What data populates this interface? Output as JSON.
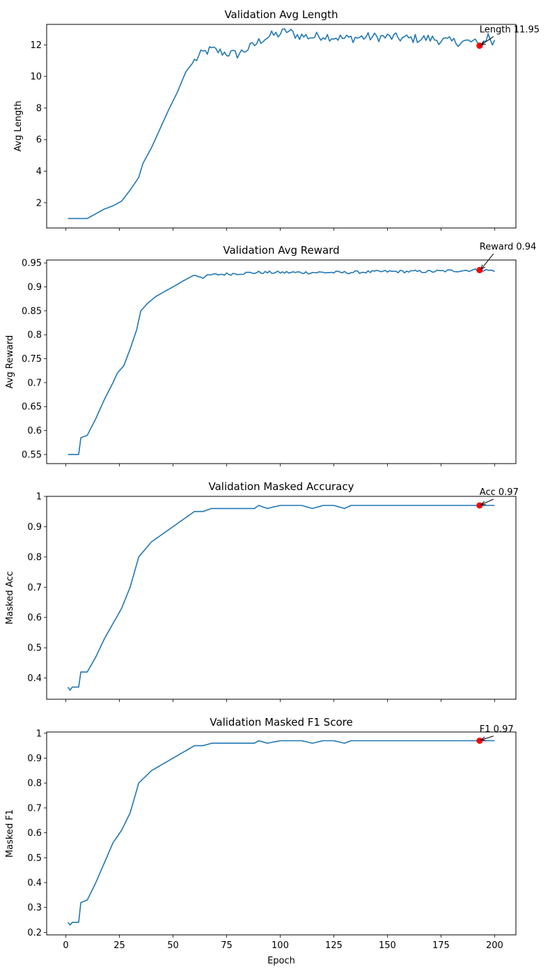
{
  "chart_data": [
    {
      "type": "line",
      "title": "Validation Avg Length",
      "xlabel": "",
      "ylabel": "Avg Length",
      "xlim": [
        -8.95,
        209.95
      ],
      "ylim": [
        0.4,
        13.3
      ],
      "xticks": [
        0,
        25,
        50,
        75,
        100,
        125,
        150,
        175,
        200
      ],
      "yticks": [
        2,
        4,
        6,
        8,
        10,
        12
      ],
      "show_xtick_labels": false,
      "series_color": "#1f77b4",
      "marker_color": "#ff0000",
      "knots": [
        [
          1,
          1.0
        ],
        [
          10,
          1.0
        ],
        [
          14,
          1.3
        ],
        [
          18,
          1.6
        ],
        [
          22,
          1.8
        ],
        [
          26,
          2.1
        ],
        [
          30,
          2.8
        ],
        [
          34,
          3.6
        ],
        [
          36,
          4.5
        ],
        [
          40,
          5.5
        ],
        [
          44,
          6.7
        ],
        [
          48,
          7.9
        ],
        [
          52,
          9.0
        ],
        [
          56,
          10.3
        ],
        [
          60,
          11.0
        ],
        [
          64,
          11.5
        ],
        [
          68,
          11.7
        ],
        [
          74,
          11.5
        ],
        [
          80,
          11.4
        ],
        [
          84,
          11.7
        ],
        [
          88,
          12.0
        ],
        [
          92,
          12.4
        ],
        [
          96,
          12.6
        ],
        [
          100,
          12.7
        ],
        [
          103,
          12.9
        ],
        [
          108,
          12.6
        ],
        [
          115,
          12.5
        ],
        [
          120,
          12.6
        ],
        [
          130,
          12.4
        ],
        [
          140,
          12.5
        ],
        [
          150,
          12.5
        ],
        [
          160,
          12.4
        ],
        [
          170,
          12.4
        ],
        [
          180,
          12.2
        ],
        [
          190,
          12.2
        ],
        [
          193,
          11.95
        ],
        [
          195,
          12.2
        ],
        [
          197,
          12.6
        ],
        [
          199,
          12.1
        ],
        [
          200,
          12.2
        ]
      ],
      "noise": 0.3,
      "noise_from": 60,
      "point": {
        "x": 193,
        "y": 11.95
      },
      "annotation": {
        "text": "Length 11.95",
        "x": 193,
        "y": 12.7
      }
    },
    {
      "type": "line",
      "title": "Validation Avg Reward",
      "xlabel": "",
      "ylabel": "Avg Reward",
      "xlim": [
        -8.95,
        209.95
      ],
      "ylim": [
        0.531,
        0.956
      ],
      "xticks": [
        0,
        25,
        50,
        75,
        100,
        125,
        150,
        175,
        200
      ],
      "yticks": [
        0.55,
        0.6,
        0.65,
        0.7,
        0.75,
        0.8,
        0.85,
        0.9,
        0.95
      ],
      "show_xtick_labels": false,
      "series_color": "#1f77b4",
      "marker_color": "#ff0000",
      "knots": [
        [
          1,
          0.55
        ],
        [
          6,
          0.55
        ],
        [
          7,
          0.585
        ],
        [
          10,
          0.59
        ],
        [
          14,
          0.625
        ],
        [
          18,
          0.665
        ],
        [
          22,
          0.7
        ],
        [
          24,
          0.72
        ],
        [
          27,
          0.735
        ],
        [
          30,
          0.77
        ],
        [
          33,
          0.81
        ],
        [
          35,
          0.85
        ],
        [
          38,
          0.865
        ],
        [
          42,
          0.88
        ],
        [
          46,
          0.89
        ],
        [
          50,
          0.9
        ],
        [
          55,
          0.913
        ],
        [
          60,
          0.925
        ],
        [
          64,
          0.92
        ],
        [
          68,
          0.925
        ],
        [
          80,
          0.928
        ],
        [
          90,
          0.93
        ],
        [
          110,
          0.93
        ],
        [
          130,
          0.93
        ],
        [
          150,
          0.932
        ],
        [
          170,
          0.932
        ],
        [
          190,
          0.935
        ],
        [
          193,
          0.935
        ],
        [
          200,
          0.934
        ]
      ],
      "noise": 0.003,
      "noise_from": 60,
      "point": {
        "x": 193,
        "y": 0.935
      },
      "annotation": {
        "text": "Reward 0.94",
        "x": 193,
        "y": 0.975
      }
    },
    {
      "type": "line",
      "title": "Validation Masked Accuracy",
      "xlabel": "",
      "ylabel": "Masked Acc",
      "xlim": [
        -8.95,
        209.95
      ],
      "ylim": [
        0.33,
        1.0
      ],
      "xticks": [
        0,
        25,
        50,
        75,
        100,
        125,
        150,
        175,
        200
      ],
      "yticks": [
        0.4,
        0.5,
        0.6,
        0.7,
        0.8,
        0.9,
        1.0
      ],
      "show_xtick_labels": false,
      "series_color": "#1f77b4",
      "marker_color": "#ff0000",
      "knots": [
        [
          1,
          0.37
        ],
        [
          2,
          0.36
        ],
        [
          3,
          0.37
        ],
        [
          6,
          0.37
        ],
        [
          7,
          0.42
        ],
        [
          10,
          0.42
        ],
        [
          14,
          0.47
        ],
        [
          18,
          0.53
        ],
        [
          22,
          0.58
        ],
        [
          26,
          0.63
        ],
        [
          30,
          0.7
        ],
        [
          34,
          0.8
        ],
        [
          40,
          0.85
        ],
        [
          44,
          0.87
        ],
        [
          48,
          0.89
        ],
        [
          52,
          0.91
        ],
        [
          56,
          0.93
        ],
        [
          60,
          0.95
        ],
        [
          64,
          0.95
        ],
        [
          68,
          0.96
        ],
        [
          80,
          0.96
        ],
        [
          88,
          0.96
        ],
        [
          90,
          0.97
        ],
        [
          94,
          0.96
        ],
        [
          100,
          0.97
        ],
        [
          110,
          0.97
        ],
        [
          115,
          0.96
        ],
        [
          120,
          0.97
        ],
        [
          125,
          0.97
        ],
        [
          130,
          0.96
        ],
        [
          133,
          0.97
        ],
        [
          150,
          0.97
        ],
        [
          170,
          0.97
        ],
        [
          193,
          0.97
        ],
        [
          200,
          0.97
        ]
      ],
      "noise": 0.0,
      "noise_from": 200,
      "point": {
        "x": 193,
        "y": 0.97
      },
      "annotation": {
        "text": "Acc 0.97",
        "x": 193,
        "y": 1.0
      }
    },
    {
      "type": "line",
      "title": "Validation Masked F1 Score",
      "xlabel": "Epoch",
      "ylabel": "Masked F1",
      "xlim": [
        -8.95,
        209.95
      ],
      "ylim": [
        0.19,
        1.005
      ],
      "xticks": [
        0,
        25,
        50,
        75,
        100,
        125,
        150,
        175,
        200
      ],
      "yticks": [
        0.2,
        0.3,
        0.4,
        0.5,
        0.6,
        0.7,
        0.8,
        0.9,
        1.0
      ],
      "show_xtick_labels": true,
      "series_color": "#1f77b4",
      "marker_color": "#ff0000",
      "knots": [
        [
          1,
          0.24
        ],
        [
          2,
          0.23
        ],
        [
          3,
          0.24
        ],
        [
          6,
          0.24
        ],
        [
          7,
          0.32
        ],
        [
          10,
          0.33
        ],
        [
          14,
          0.4
        ],
        [
          18,
          0.48
        ],
        [
          22,
          0.56
        ],
        [
          26,
          0.61
        ],
        [
          30,
          0.68
        ],
        [
          34,
          0.8
        ],
        [
          40,
          0.85
        ],
        [
          44,
          0.87
        ],
        [
          48,
          0.89
        ],
        [
          52,
          0.91
        ],
        [
          56,
          0.93
        ],
        [
          60,
          0.95
        ],
        [
          64,
          0.95
        ],
        [
          68,
          0.96
        ],
        [
          80,
          0.96
        ],
        [
          88,
          0.96
        ],
        [
          90,
          0.97
        ],
        [
          94,
          0.96
        ],
        [
          100,
          0.97
        ],
        [
          110,
          0.97
        ],
        [
          115,
          0.96
        ],
        [
          120,
          0.97
        ],
        [
          125,
          0.97
        ],
        [
          130,
          0.96
        ],
        [
          133,
          0.97
        ],
        [
          150,
          0.97
        ],
        [
          170,
          0.97
        ],
        [
          193,
          0.97
        ],
        [
          200,
          0.97
        ]
      ],
      "noise": 0.0,
      "noise_from": 200,
      "point": {
        "x": 193,
        "y": 0.97
      },
      "annotation": {
        "text": "F1 0.97",
        "x": 193,
        "y": 1.0
      }
    }
  ]
}
